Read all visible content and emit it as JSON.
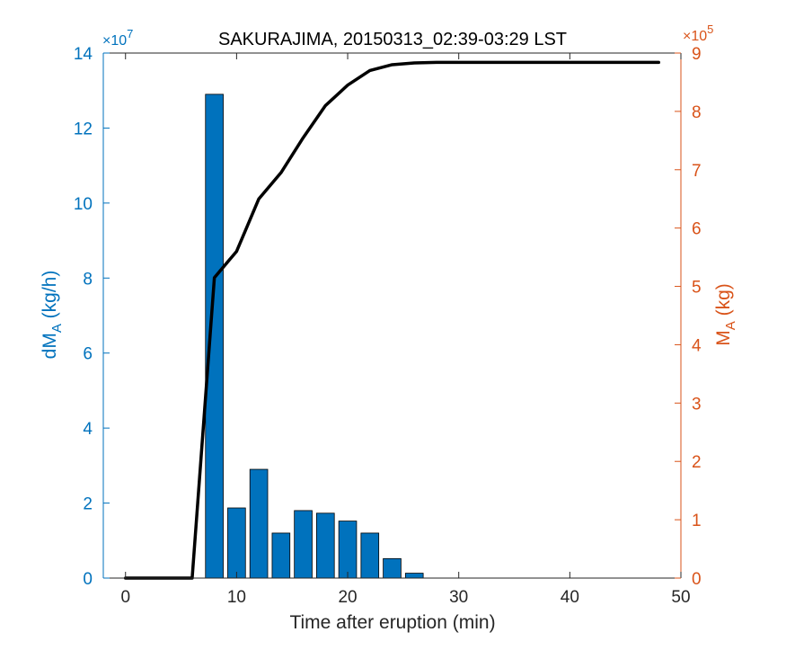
{
  "chart_data": {
    "type": "bar+line",
    "title": "SAKURAJIMA, 20150313_02:39-03:29 LST",
    "xlabel": "Time after eruption (min)",
    "xlim": [
      -2,
      50
    ],
    "xticks": [
      0,
      10,
      20,
      30,
      40,
      50
    ],
    "left_axis": {
      "label_main": "dM",
      "label_sub": "A",
      "label_unit": " (kg/h)",
      "multiplier": "×10",
      "multiplier_exp": "7",
      "color": "#0072BD",
      "lim": [
        0,
        14
      ],
      "ticks": [
        0,
        2,
        4,
        6,
        8,
        10,
        12,
        14
      ]
    },
    "right_axis": {
      "label_main": "M",
      "label_sub": "A",
      "label_unit": " (kg)",
      "multiplier": "×10",
      "multiplier_exp": "5",
      "color": "#D95319",
      "lim": [
        0,
        9
      ],
      "ticks": [
        0,
        1,
        2,
        3,
        4,
        5,
        6,
        7,
        8,
        9
      ]
    },
    "bar_series": {
      "axis": "left",
      "color": "#0072BD",
      "x": [
        8,
        10,
        12,
        14,
        16,
        18,
        20,
        22,
        24,
        26
      ],
      "values": [
        12.9,
        1.87,
        2.9,
        1.2,
        1.8,
        1.73,
        1.52,
        1.2,
        0.52,
        0.13
      ]
    },
    "line_series": {
      "axis": "right",
      "color": "#000000",
      "x": [
        0,
        6,
        8,
        10,
        12,
        14,
        16,
        18,
        20,
        22,
        24,
        26,
        28,
        30,
        32,
        34,
        36,
        38,
        40,
        42,
        44,
        46,
        48
      ],
      "values": [
        0,
        0,
        5.15,
        5.6,
        6.5,
        6.95,
        7.55,
        8.1,
        8.45,
        8.7,
        8.8,
        8.83,
        8.84,
        8.84,
        8.84,
        8.84,
        8.84,
        8.84,
        8.84,
        8.84,
        8.84,
        8.84,
        8.84
      ]
    }
  }
}
